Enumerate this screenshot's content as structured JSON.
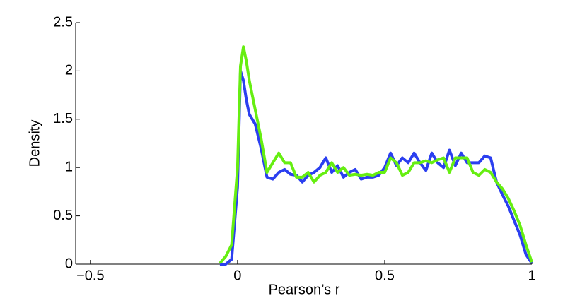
{
  "chart_data": {
    "type": "line",
    "xlabel": "Pearson’s r",
    "ylabel": "Density",
    "x": [
      -0.06,
      -0.04,
      -0.02,
      0,
      0.01,
      0.02,
      0.03,
      0.04,
      0.06,
      0.08,
      0.1,
      0.12,
      0.14,
      0.16,
      0.18,
      0.2,
      0.22,
      0.24,
      0.26,
      0.28,
      0.3,
      0.32,
      0.34,
      0.36,
      0.38,
      0.4,
      0.42,
      0.44,
      0.46,
      0.48,
      0.5,
      0.52,
      0.54,
      0.56,
      0.58,
      0.6,
      0.62,
      0.64,
      0.66,
      0.68,
      0.7,
      0.72,
      0.74,
      0.76,
      0.78,
      0.8,
      0.82,
      0.84,
      0.86,
      0.88,
      0.9,
      0.92,
      0.94,
      0.96,
      0.98,
      1.0
    ],
    "series": [
      {
        "color": "#2b3ff0",
        "values": [
          0,
          0,
          0.05,
          0.8,
          2.0,
          1.9,
          1.7,
          1.55,
          1.45,
          1.2,
          0.9,
          0.88,
          0.95,
          0.98,
          0.93,
          0.92,
          0.85,
          0.92,
          0.95,
          1.0,
          1.1,
          0.95,
          1.02,
          0.9,
          0.95,
          0.98,
          0.88,
          0.9,
          0.9,
          0.92,
          1.0,
          1.15,
          1.02,
          1.1,
          1.05,
          1.15,
          1.05,
          0.97,
          1.15,
          1.05,
          1.0,
          1.18,
          1.02,
          1.15,
          1.05,
          1.05,
          1.05,
          1.12,
          1.1,
          0.85,
          0.72,
          0.6,
          0.45,
          0.3,
          0.1,
          0.01
        ]
      },
      {
        "color": "#66ee11",
        "values": [
          0.01,
          0.08,
          0.2,
          1.0,
          2.05,
          2.25,
          2.1,
          1.9,
          1.6,
          1.3,
          0.95,
          1.05,
          1.15,
          1.05,
          1.05,
          0.9,
          0.9,
          0.95,
          0.85,
          0.92,
          0.95,
          1.05,
          0.95,
          1.0,
          0.92,
          0.93,
          0.92,
          0.93,
          0.92,
          0.95,
          0.95,
          1.1,
          1.05,
          0.92,
          0.95,
          1.05,
          1.05,
          1.07,
          1.05,
          1.08,
          1.1,
          0.95,
          1.1,
          1.1,
          1.1,
          0.95,
          0.92,
          0.98,
          0.95,
          0.85,
          0.78,
          0.68,
          0.55,
          0.4,
          0.2,
          0.02
        ]
      }
    ],
    "xlim": [
      -0.55,
      1
    ],
    "ylim": [
      0,
      2.5
    ],
    "xticks": [
      {
        "value": -0.5,
        "label": "−0.5"
      },
      0,
      0.5,
      1
    ],
    "yticks": [
      0,
      0.5,
      1,
      1.5,
      2,
      2.5
    ]
  }
}
